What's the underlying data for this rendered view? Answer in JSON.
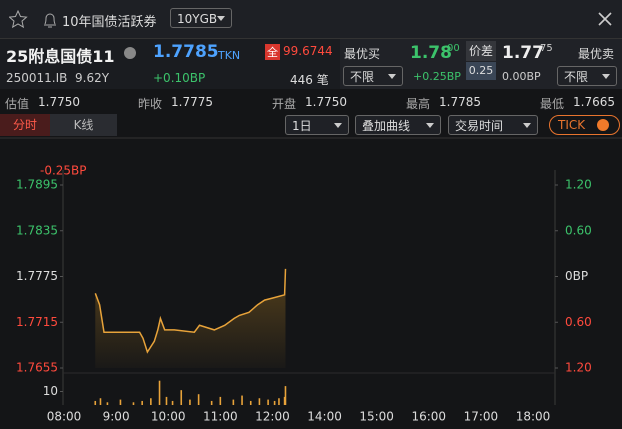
{
  "header": {
    "title": "10年国债活跃券",
    "selector": "10YGB"
  },
  "quote": {
    "name": "25附息国债11",
    "price": "1.7785",
    "source": "TKN",
    "badge": "全",
    "clean_price": "99.6744",
    "code": "250011.IB",
    "tenor": "9.62Y",
    "change": "+0.10BP",
    "trades": "446 笔"
  },
  "best_bid": {
    "label": "最优买",
    "price": "1.78",
    "price_sup": "00",
    "filter": "不限",
    "change": "+0.25BP"
  },
  "spread": {
    "label": "价差",
    "value": "0.25"
  },
  "best_ask": {
    "label": "最优卖",
    "price": "1.77",
    "price_sup": "75",
    "filter": "不限",
    "change": "0.00BP"
  },
  "stats": [
    {
      "label": "估值",
      "value": "1.7750"
    },
    {
      "label": "昨收",
      "value": "1.7775"
    },
    {
      "label": "开盘",
      "value": "1.7750"
    },
    {
      "label": "最高",
      "value": "1.7785"
    },
    {
      "label": "最低",
      "value": "1.7665"
    }
  ],
  "tabs": [
    "分时",
    "K线"
  ],
  "controls": [
    "1日",
    "叠加曲线",
    "交易时间",
    "TICK"
  ],
  "chart_data": {
    "type": "line",
    "annotation": "-0.25BP",
    "color": "#e8a33a",
    "x": [
      "08:36",
      "08:41",
      "08:46",
      "09:27",
      "09:31",
      "09:36",
      "09:44",
      "09:48",
      "09:51",
      "09:56",
      "10:07",
      "10:30",
      "10:36",
      "10:53",
      "11:05",
      "11:16",
      "11:22",
      "11:33",
      "11:43",
      "11:51",
      "12:02",
      "12:28",
      "12:30"
    ],
    "values": [
      1.7753,
      1.7738,
      1.7702,
      1.7702,
      1.7694,
      1.7676,
      1.769,
      1.7705,
      1.772,
      1.7705,
      1.7705,
      1.7702,
      1.7711,
      1.7705,
      1.7711,
      1.772,
      1.7724,
      1.7728,
      1.7738,
      1.7744,
      1.7747,
      1.7751,
      1.7785
    ],
    "ylim": [
      1.7655,
      1.7895
    ],
    "yticks": [
      1.7895,
      1.7835,
      1.7775,
      1.7715,
      1.7655
    ],
    "y2lim": [
      -1.2,
      1.2
    ],
    "y2ticks": [
      {
        "value": 1.2,
        "label": "1.20"
      },
      {
        "value": 0.6,
        "label": "0.60"
      },
      {
        "value": 0,
        "label": "0BP"
      },
      {
        "value": -0.6,
        "label": "0.60"
      },
      {
        "value": -1.2,
        "label": "1.20"
      }
    ],
    "xticks": [
      "08:00",
      "9:00",
      "10:00",
      "11:00",
      "12:00",
      "14:00",
      "15:00",
      "16:00",
      "17:00",
      "18:00"
    ],
    "volume": {
      "color": "#e8a33a",
      "ylim": [
        0,
        20
      ],
      "yticks": [
        10
      ],
      "x": [
        "08:36",
        "08:42",
        "08:50",
        "09:05",
        "09:20",
        "09:30",
        "09:40",
        "09:50",
        "09:58",
        "10:05",
        "10:15",
        "10:25",
        "10:35",
        "10:50",
        "11:00",
        "11:15",
        "11:25",
        "11:35",
        "11:45",
        "11:55",
        "12:05",
        "12:15",
        "12:28",
        "12:30"
      ],
      "values": [
        3,
        5,
        2,
        4,
        2,
        3,
        5,
        18,
        6,
        3,
        11,
        4,
        8,
        3,
        6,
        4,
        7,
        3,
        5,
        4,
        3,
        5,
        6,
        14
      ]
    }
  }
}
